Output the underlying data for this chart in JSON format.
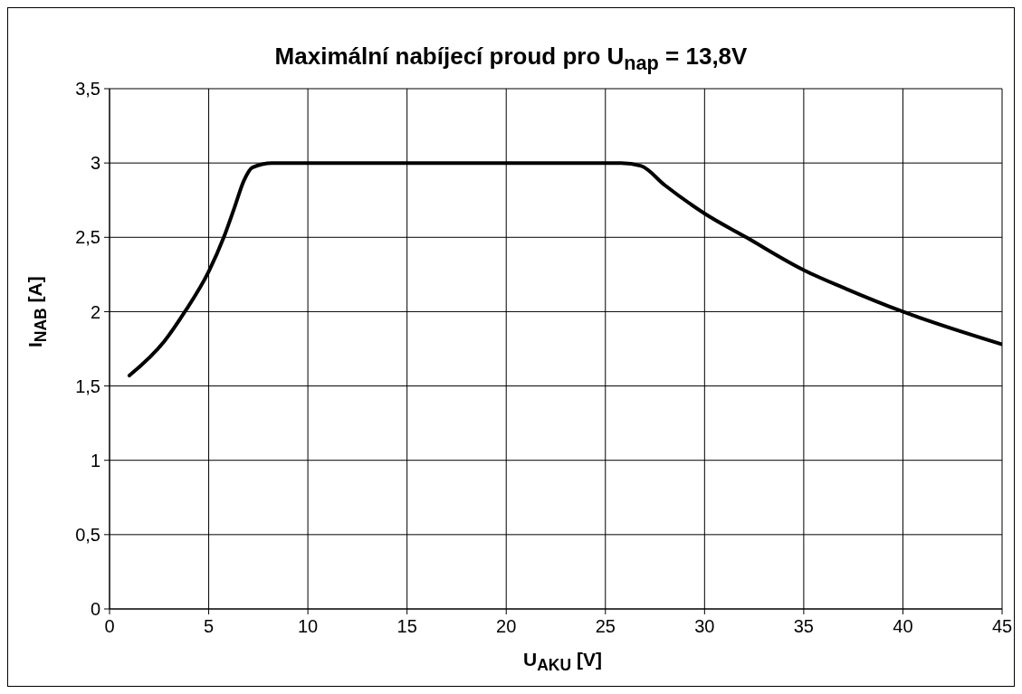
{
  "chart_data": {
    "type": "line",
    "title": "Maximální nabíjecí proud pro U$_{nap}$ = 13,8V",
    "xlabel": "U$_{AKU}$ [V]",
    "ylabel": "I$_{NAB}$ [A]",
    "series": [
      {
        "color": "#000000",
        "x": [
          1.0,
          2.76,
          3.8,
          5.0,
          5.76,
          6.3,
          6.77,
          7.2,
          8.2,
          10,
          15,
          20,
          25,
          25.8,
          26.8,
          28.0,
          30,
          32.1,
          35,
          37.2,
          40,
          45
        ],
        "values": [
          1.57,
          1.8,
          2.0,
          2.27,
          2.5,
          2.7,
          2.88,
          2.97,
          3.0,
          3.0,
          3.0,
          3.0,
          3.0,
          3.0,
          2.98,
          2.85,
          2.66,
          2.5,
          2.28,
          2.15,
          2.0,
          1.78
        ]
      }
    ],
    "xlim": [
      0,
      45
    ],
    "xticks": [
      0,
      5,
      10,
      15,
      20,
      25,
      30,
      35,
      40,
      45
    ],
    "ylim": [
      0,
      3.5
    ],
    "yticks": [
      0,
      {
        "value": 0.5,
        "label": "0,5"
      },
      1,
      {
        "value": 1.5,
        "label": "1,5"
      },
      2,
      {
        "value": 2.5,
        "label": "2,5"
      },
      3,
      {
        "value": 3.5,
        "label": "3,5"
      }
    ],
    "grid": true,
    "legend": false,
    "marker": "none",
    "line_style": "solid"
  }
}
